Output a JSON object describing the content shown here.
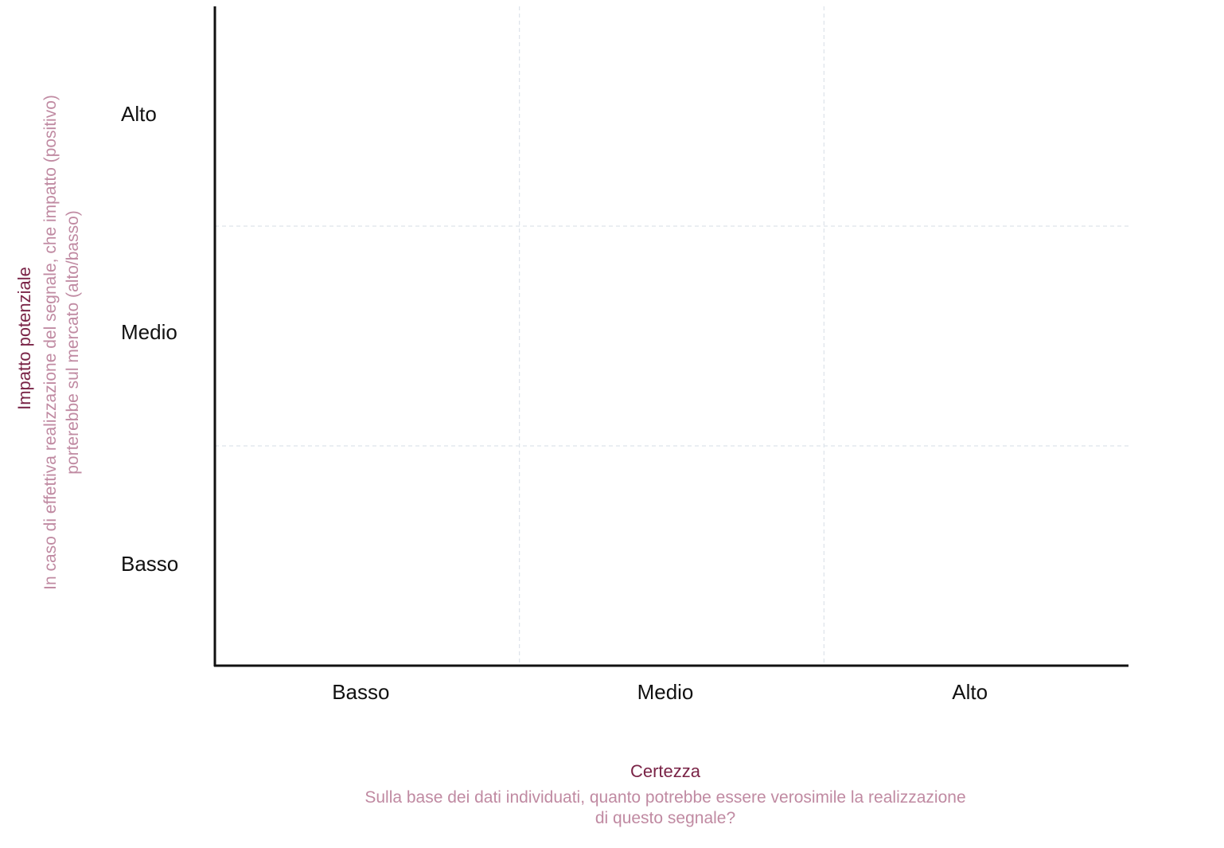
{
  "colors": {
    "axis": "#111111",
    "grid": "#dde3ea",
    "tick_text": "#111111",
    "title_primary": "#7a2447",
    "title_secondary": "#c08aa2"
  },
  "chart_data": {
    "type": "scatter",
    "grid": true,
    "x_axis": {
      "categories": [
        "Basso",
        "Medio",
        "Alto"
      ],
      "title": "Certezza",
      "subtitle_lines": [
        "Sulla base dei dati individuati, quanto potrebbe essere verosimile la realizzazione",
        "di questo segnale?"
      ]
    },
    "y_axis": {
      "categories": [
        "Basso",
        "Medio",
        "Alto"
      ],
      "title": "Impatto potenziale",
      "subtitle_lines": [
        "In caso di effettiva realizzazione del segnale, che impatto (positivo)",
        "porterebbe sul mercato (alto/basso)"
      ]
    },
    "series": []
  }
}
